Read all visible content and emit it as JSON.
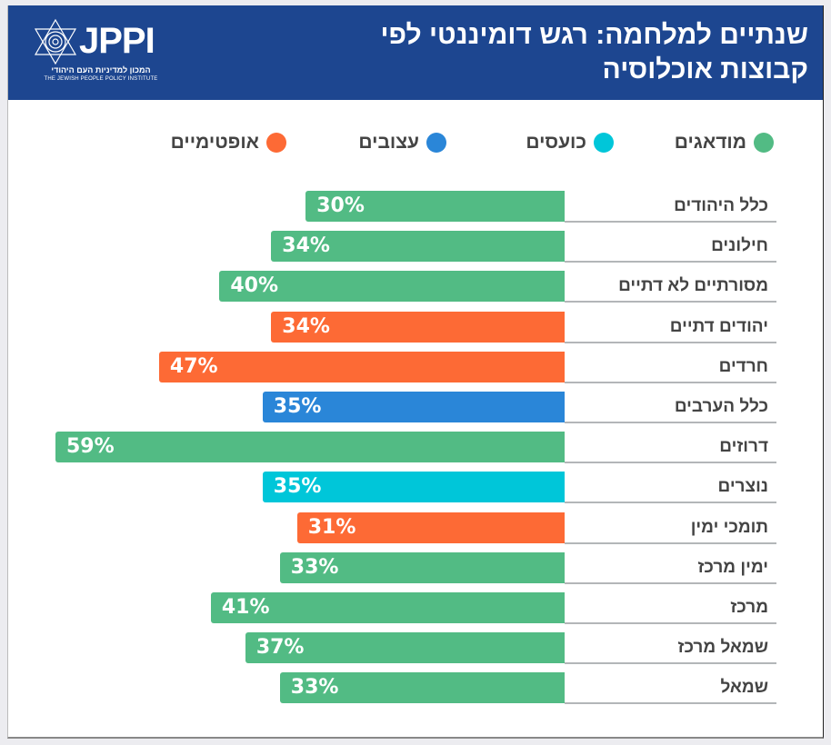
{
  "header": {
    "title_line1": "שנתיים למלחמה: רגש דומיננטי לפי",
    "title_line2": "קבוצות אוכלוסיה",
    "logo": {
      "wordmark": "JPPI",
      "hebrew_name": "המכון למדיניות העם היהודי",
      "english_name": "THE JEWISH PEOPLE POLICY INSTITUTE",
      "icon": "star-of-david-icon"
    }
  },
  "colors": {
    "header_bg": "#1d4690",
    "worried": "#52bb84",
    "angry": "#00c6d9",
    "sad": "#2a86d8",
    "optimistic": "#fd6a35",
    "label_text": "#444444"
  },
  "chart_data": {
    "type": "bar",
    "orientation": "horizontal",
    "title": "שנתיים למלחמה: רגש דומיננטי לפי קבוצות אוכלוסיה",
    "xlabel": "",
    "ylabel": "",
    "xlim": [
      0,
      59
    ],
    "grid": false,
    "legend_position": "top",
    "unit": "%",
    "legend": [
      {
        "key": "worried",
        "label": "מודאגים",
        "color": "#52bb84"
      },
      {
        "key": "angry",
        "label": "כועסים",
        "color": "#00c6d9"
      },
      {
        "key": "sad",
        "label": "עצובים",
        "color": "#2a86d8"
      },
      {
        "key": "optimistic",
        "label": "אופטימיים",
        "color": "#fd6a35"
      }
    ],
    "categories": [
      "כלל היהודים",
      "חילונים",
      "מסורתיים לא דתיים",
      "יהודים דתיים",
      "חרדים",
      "כלל הערבים",
      "דרוזים",
      "נוצרים",
      "תומכי ימין",
      "ימין מרכז",
      "מרכז",
      "שמאל מרכז",
      "שמאל"
    ],
    "values": [
      30,
      34,
      40,
      34,
      47,
      35,
      59,
      35,
      31,
      33,
      41,
      37,
      33
    ],
    "value_labels": [
      "30%",
      "34%",
      "40%",
      "34%",
      "47%",
      "35%",
      "59%",
      "35%",
      "31%",
      "33%",
      "41%",
      "37%",
      "33%"
    ],
    "dominant_emotion": [
      "worried",
      "worried",
      "worried",
      "optimistic",
      "optimistic",
      "sad",
      "worried",
      "angry",
      "optimistic",
      "worried",
      "worried",
      "worried",
      "worried"
    ]
  }
}
